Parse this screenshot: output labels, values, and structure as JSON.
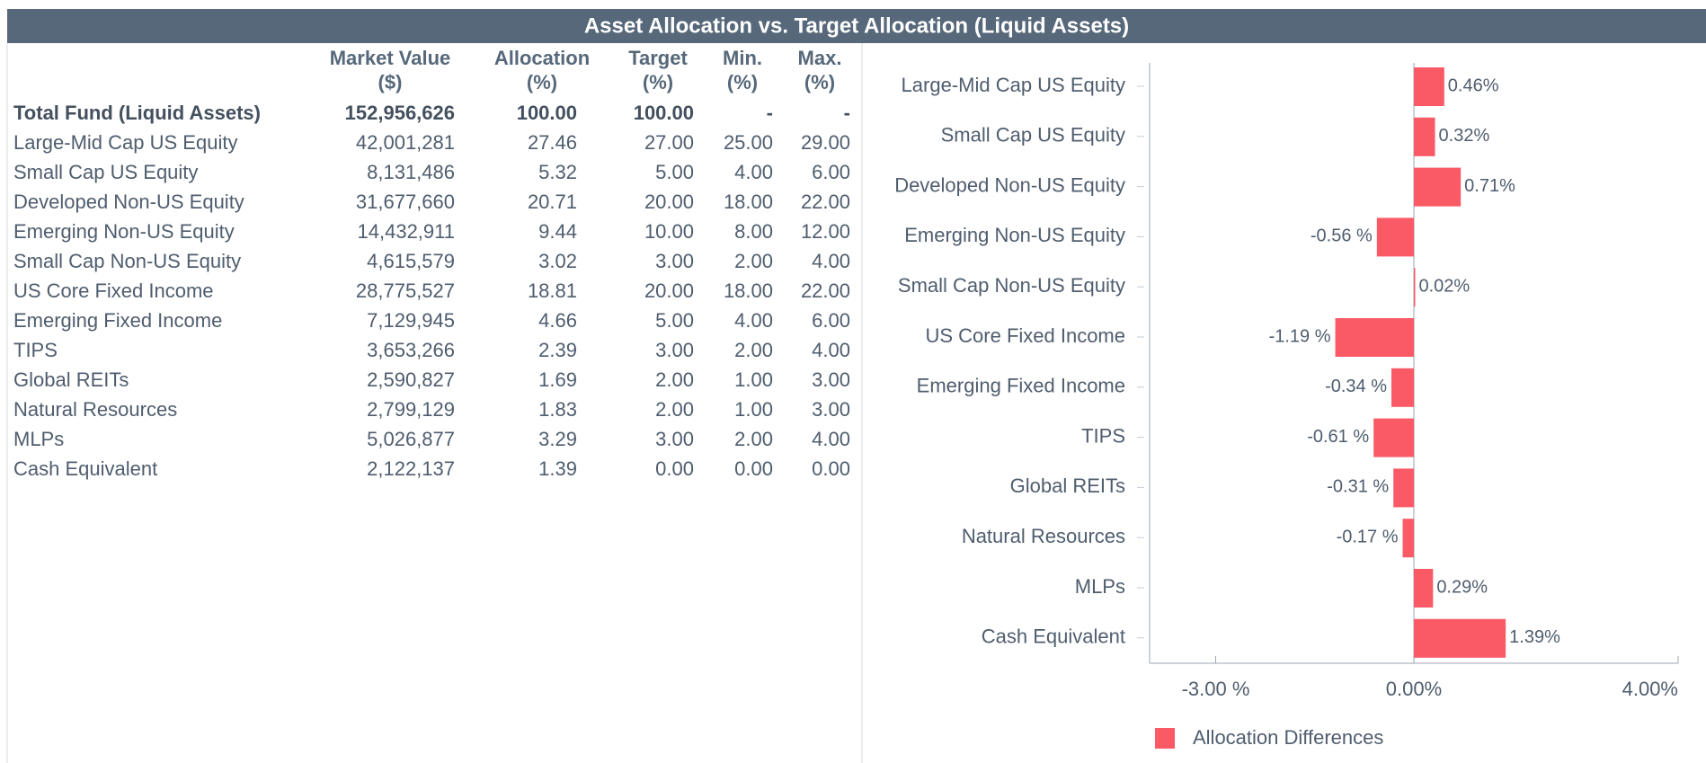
{
  "title": "Asset Allocation vs. Target Allocation (Liquid Assets)",
  "table": {
    "header": [
      [
        "Market Value",
        "($)"
      ],
      [
        "Allocation",
        "(%)"
      ],
      [
        "Target",
        "(%)"
      ],
      [
        "Min.",
        "(%)"
      ],
      [
        "Max.",
        "(%)"
      ]
    ],
    "rows": [
      [
        "Total Fund (Liquid Assets)",
        "152,956,626",
        "100.00",
        "100.00",
        "-",
        "-"
      ],
      [
        "Large-Mid Cap US Equity",
        "42,001,281",
        "27.46",
        "27.00",
        "25.00",
        "29.00"
      ],
      [
        "Small Cap US Equity",
        "8,131,486",
        "5.32",
        "5.00",
        "4.00",
        "6.00"
      ],
      [
        "Developed Non-US Equity",
        "31,677,660",
        "20.71",
        "20.00",
        "18.00",
        "22.00"
      ],
      [
        "Emerging Non-US Equity",
        "14,432,911",
        "9.44",
        "10.00",
        "8.00",
        "12.00"
      ],
      [
        "Small Cap Non-US Equity",
        "4,615,579",
        "3.02",
        "3.00",
        "2.00",
        "4.00"
      ],
      [
        "US Core Fixed Income",
        "28,775,527",
        "18.81",
        "20.00",
        "18.00",
        "22.00"
      ],
      [
        "Emerging Fixed Income",
        "7,129,945",
        "4.66",
        "5.00",
        "4.00",
        "6.00"
      ],
      [
        "TIPS",
        "3,653,266",
        "2.39",
        "3.00",
        "2.00",
        "4.00"
      ],
      [
        "Global REITs",
        "2,590,827",
        "1.69",
        "2.00",
        "1.00",
        "3.00"
      ],
      [
        "Natural Resources",
        "2,799,129",
        "1.83",
        "2.00",
        "1.00",
        "3.00"
      ],
      [
        "MLPs",
        "5,026,877",
        "3.29",
        "3.00",
        "2.00",
        "4.00"
      ],
      [
        "Cash Equivalent",
        "2,122,137",
        "1.39",
        "0.00",
        "0.00",
        "0.00"
      ]
    ]
  },
  "chart_data": {
    "type": "barh",
    "categories": [
      "Large-Mid Cap US Equity",
      "Small Cap US Equity",
      "Developed Non-US Equity",
      "Emerging Non-US Equity",
      "Small Cap Non-US Equity",
      "US Core Fixed Income",
      "Emerging Fixed Income",
      "TIPS",
      "Global REITs",
      "Natural Resources",
      "MLPs",
      "Cash Equivalent"
    ],
    "series": [
      {
        "name": "Allocation Differences",
        "color": "#f95a66",
        "values": [
          0.46,
          0.32,
          0.71,
          -0.56,
          0.02,
          -1.19,
          -0.34,
          -0.61,
          -0.31,
          -0.17,
          0.29,
          1.39
        ],
        "value_labels": [
          "0.46%",
          "0.32%",
          "0.71%",
          "-0.56 %",
          "0.02%",
          "-1.19 %",
          "-0.34 %",
          "-0.61 %",
          "-0.31 %",
          "-0.17 %",
          "0.29%",
          "1.39%"
        ]
      }
    ],
    "xlim": [
      -4,
      4
    ],
    "xticks": [
      {
        "value": -3,
        "label": "-3.00 %"
      },
      {
        "value": 0,
        "label": "0.00%"
      },
      {
        "value": 4,
        "label": "4.00%"
      }
    ],
    "legend": "bottom"
  }
}
